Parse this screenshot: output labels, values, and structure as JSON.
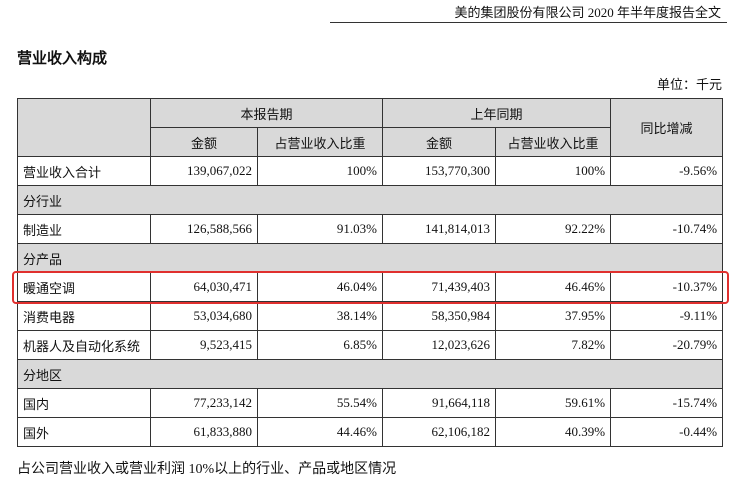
{
  "header": {
    "title": "美的集团股份有限公司 2020 年半年度报告全文"
  },
  "section_title": "营业收入构成",
  "unit": "单位：千元",
  "table": {
    "group_headers": [
      "本报告期",
      "上年同期",
      "同比增减"
    ],
    "sub_headers": [
      "金额",
      "占营业收入比重",
      "金额",
      "占营业收入比重"
    ],
    "rows": [
      [
        "营业收入合计",
        "139,067,022",
        "100%",
        "153,770,300",
        "100%",
        "-9.56%"
      ],
      [
        "分行业"
      ],
      [
        "制造业",
        "126,588,566",
        "91.03%",
        "141,814,013",
        "92.22%",
        "-10.74%"
      ],
      [
        "分产品"
      ],
      [
        "暖通空调",
        "64,030,471",
        "46.04%",
        "71,439,403",
        "46.46%",
        "-10.37%"
      ],
      [
        "消费电器",
        "53,034,680",
        "38.14%",
        "58,350,984",
        "37.95%",
        "-9.11%"
      ],
      [
        "机器人及自动化系统",
        "9,523,415",
        "6.85%",
        "12,023,626",
        "7.82%",
        "-20.79%"
      ],
      [
        "分地区"
      ],
      [
        "国内",
        "77,233,142",
        "55.54%",
        "91,664,118",
        "59.61%",
        "-15.74%"
      ],
      [
        "国外",
        "61,833,880",
        "44.46%",
        "62,106,182",
        "40.39%",
        "-0.44%"
      ]
    ]
  },
  "footnote": "占公司营业收入或营业利润 10%以上的行业、产品或地区情况"
}
